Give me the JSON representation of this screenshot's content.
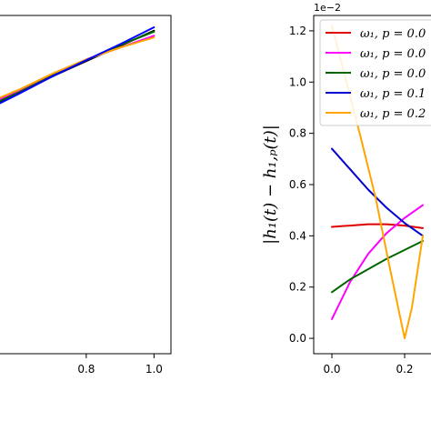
{
  "chart_data": [
    {
      "type": "line",
      "panel": "left",
      "title": "",
      "xlabel": "",
      "ylabel": "",
      "xlim": [
        0.54,
        1.05
      ],
      "ylim": [
        0.0,
        1.0
      ],
      "x_ticks": [
        0.8,
        1.0
      ],
      "x_tick_labels": [
        "0.8",
        "1.0"
      ],
      "grid": false,
      "series": [
        {
          "color": "#000000",
          "x": [
            0.54,
            0.6,
            0.7,
            0.8,
            0.9,
            1.0
          ],
          "y": [
            0.74,
            0.77,
            0.82,
            0.865,
            0.91,
            0.955
          ]
        },
        {
          "color": "#ff00ff",
          "x": [
            0.54,
            0.6,
            0.7,
            0.8,
            0.9,
            1.0
          ],
          "y": [
            0.75,
            0.775,
            0.825,
            0.87,
            0.905,
            0.94
          ]
        },
        {
          "color": "#006400",
          "x": [
            0.54,
            0.6,
            0.7,
            0.8,
            0.9,
            1.0
          ],
          "y": [
            0.745,
            0.772,
            0.822,
            0.868,
            0.912,
            0.952
          ]
        },
        {
          "color": "#ffa500",
          "x": [
            0.54,
            0.6,
            0.7,
            0.8,
            0.9,
            1.0
          ],
          "y": [
            0.755,
            0.78,
            0.828,
            0.87,
            0.905,
            0.935
          ]
        },
        {
          "color": "#0000ff",
          "x": [
            0.54,
            0.6,
            0.7,
            0.8,
            0.9,
            1.0
          ],
          "y": [
            0.738,
            0.768,
            0.82,
            0.868,
            0.915,
            0.965
          ]
        }
      ]
    },
    {
      "type": "line",
      "panel": "right",
      "title": "",
      "xlabel": "",
      "ylabel": "|h_1(t) − h_{1,p}(t)|",
      "ylabel_display": "|h₁(t) − h₁,ₚ(t)|",
      "offset_text": "1e−2",
      "xlim": [
        -0.05,
        0.3
      ],
      "ylim": [
        -0.06,
        1.26
      ],
      "x_ticks": [
        0.0,
        0.2
      ],
      "x_tick_labels": [
        "0.0",
        "0.2"
      ],
      "y_ticks": [
        0.0,
        0.2,
        0.4,
        0.6,
        0.8,
        1.0,
        1.2
      ],
      "y_tick_labels": [
        "0.0",
        "0.2",
        "0.4",
        "0.6",
        "0.8",
        "1.0",
        "1.2"
      ],
      "grid": false,
      "legend_placement": "upper-right",
      "legend_entries": [
        "ω₁, p = 0.0",
        "ω₁, p = 0.0",
        "ω₁, p = 0.0",
        "ω₁, p = 0.1",
        "ω₁, p = 0.2"
      ],
      "series": [
        {
          "name": "ω₁, p = 0.0",
          "color": "#dd0000",
          "x": [
            0.0,
            0.05,
            0.1,
            0.15,
            0.2,
            0.25
          ],
          "y": [
            0.435,
            0.44,
            0.445,
            0.445,
            0.44,
            0.43
          ]
        },
        {
          "name": "ω₁, p = 0.0",
          "color": "#ff00ff",
          "x": [
            0.0,
            0.05,
            0.1,
            0.15,
            0.2,
            0.25
          ],
          "y": [
            0.075,
            0.22,
            0.33,
            0.41,
            0.47,
            0.52
          ]
        },
        {
          "name": "ω₁, p = 0.0",
          "color": "#006400",
          "x": [
            0.0,
            0.05,
            0.1,
            0.15,
            0.2,
            0.25
          ],
          "y": [
            0.18,
            0.23,
            0.27,
            0.31,
            0.345,
            0.38
          ]
        },
        {
          "name": "ω₁, p = 0.1",
          "color": "#0000cc",
          "x": [
            0.0,
            0.05,
            0.1,
            0.15,
            0.2,
            0.25
          ],
          "y": [
            0.74,
            0.66,
            0.58,
            0.51,
            0.45,
            0.4
          ]
        },
        {
          "name": "ω₁, p = 0.2",
          "color": "#ffa500",
          "x": [
            0.0,
            0.04,
            0.08,
            0.12,
            0.16,
            0.2,
            0.22,
            0.25
          ],
          "y": [
            1.22,
            1.0,
            0.78,
            0.55,
            0.27,
            0.0,
            0.12,
            0.4
          ]
        }
      ]
    }
  ]
}
